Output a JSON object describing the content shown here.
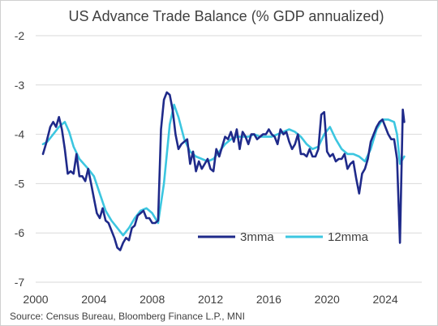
{
  "chart_data": {
    "type": "line",
    "title": "US Advance Trade Balance (% GDP annualized)",
    "xlabel": "",
    "ylabel": "",
    "xlim": [
      2000,
      2026.5
    ],
    "ylim": [
      -7,
      -2
    ],
    "x_ticks": [
      "2000",
      "2004",
      "2008",
      "2012",
      "2016",
      "2020",
      "2024"
    ],
    "y_ticks": [
      "-2",
      "-3",
      "-4",
      "-5",
      "-6",
      "-7"
    ],
    "grid": "horizontal",
    "legend_position": "lower-right",
    "source": "Source: Census Bureau, Bloomberg Finance L.P., MNI",
    "colors": {
      "3mma": "#1f2a8a",
      "12mma": "#3cc6e0"
    },
    "series": [
      {
        "name": "3mma",
        "x": [
          2000.5,
          2000.7,
          2001.0,
          2001.2,
          2001.4,
          2001.6,
          2001.8,
          2002.0,
          2002.2,
          2002.4,
          2002.6,
          2002.8,
          2003.0,
          2003.2,
          2003.4,
          2003.6,
          2003.8,
          2004.0,
          2004.2,
          2004.4,
          2004.6,
          2004.8,
          2005.0,
          2005.2,
          2005.4,
          2005.6,
          2005.8,
          2006.0,
          2006.2,
          2006.4,
          2006.6,
          2006.8,
          2007.0,
          2007.2,
          2007.4,
          2007.6,
          2007.8,
          2008.0,
          2008.2,
          2008.4,
          2008.6,
          2008.8,
          2009.0,
          2009.2,
          2009.4,
          2009.6,
          2009.8,
          2010.0,
          2010.2,
          2010.4,
          2010.6,
          2010.8,
          2011.0,
          2011.2,
          2011.4,
          2011.6,
          2011.8,
          2012.0,
          2012.2,
          2012.4,
          2012.6,
          2012.8,
          2013.0,
          2013.2,
          2013.4,
          2013.6,
          2013.8,
          2014.0,
          2014.2,
          2014.4,
          2014.6,
          2014.8,
          2015.0,
          2015.2,
          2015.4,
          2015.6,
          2015.8,
          2016.0,
          2016.2,
          2016.4,
          2016.6,
          2016.8,
          2017.0,
          2017.2,
          2017.4,
          2017.6,
          2017.8,
          2018.0,
          2018.2,
          2018.4,
          2018.6,
          2018.8,
          2019.0,
          2019.2,
          2019.4,
          2019.6,
          2019.8,
          2020.0,
          2020.2,
          2020.4,
          2020.6,
          2020.8,
          2021.0,
          2021.2,
          2021.4,
          2021.6,
          2021.8,
          2022.0,
          2022.2,
          2022.4,
          2022.6,
          2022.8,
          2023.0,
          2023.2,
          2023.4,
          2023.6,
          2023.8,
          2024.0,
          2024.2,
          2024.4,
          2024.6,
          2024.8,
          2025.0,
          2025.1,
          2025.2,
          2025.3
        ],
        "values": [
          -4.4,
          -4.2,
          -3.85,
          -3.75,
          -3.85,
          -3.65,
          -3.9,
          -4.3,
          -4.8,
          -4.75,
          -4.8,
          -4.4,
          -4.85,
          -4.85,
          -4.95,
          -4.7,
          -5.0,
          -5.3,
          -5.6,
          -5.7,
          -5.5,
          -5.75,
          -5.8,
          -5.95,
          -6.1,
          -6.3,
          -6.35,
          -6.2,
          -6.1,
          -6.15,
          -5.9,
          -5.85,
          -5.65,
          -5.6,
          -5.55,
          -5.7,
          -5.7,
          -5.8,
          -5.8,
          -5.75,
          -3.9,
          -3.3,
          -3.15,
          -3.2,
          -3.5,
          -4.0,
          -4.3,
          -4.2,
          -4.15,
          -4.1,
          -4.6,
          -4.35,
          -4.75,
          -4.55,
          -4.7,
          -4.6,
          -4.5,
          -4.7,
          -4.75,
          -4.3,
          -4.45,
          -4.25,
          -4.05,
          -4.1,
          -3.95,
          -4.15,
          -3.9,
          -4.3,
          -3.95,
          -4.05,
          -4.2,
          -4.0,
          -4.0,
          -4.1,
          -4.05,
          -4.0,
          -4.0,
          -3.9,
          -4.0,
          -4.05,
          -4.2,
          -3.9,
          -4.0,
          -3.95,
          -4.15,
          -4.3,
          -4.2,
          -4.0,
          -4.4,
          -4.4,
          -4.45,
          -4.3,
          -4.45,
          -4.45,
          -4.3,
          -3.6,
          -3.55,
          -4.35,
          -4.45,
          -4.4,
          -4.55,
          -4.5,
          -4.5,
          -4.4,
          -4.7,
          -4.6,
          -4.55,
          -4.9,
          -5.2,
          -4.8,
          -4.7,
          -4.5,
          -4.15,
          -4.0,
          -3.85,
          -3.75,
          -3.7,
          -3.85,
          -4.0,
          -4.1,
          -4.1,
          -4.5,
          -6.2,
          -4.8,
          -3.5,
          -3.75
        ]
      },
      {
        "name": "12mma",
        "x": [
          2000.5,
          2000.8,
          2001.2,
          2001.6,
          2002.0,
          2002.3,
          2002.6,
          2003.0,
          2003.3,
          2003.6,
          2004.0,
          2004.4,
          2004.8,
          2005.2,
          2005.6,
          2006.0,
          2006.4,
          2006.8,
          2007.2,
          2007.6,
          2008.0,
          2008.4,
          2008.8,
          2009.2,
          2009.5,
          2009.8,
          2010.2,
          2010.6,
          2011.0,
          2011.4,
          2011.8,
          2012.2,
          2012.6,
          2013.0,
          2013.4,
          2013.8,
          2014.2,
          2014.6,
          2015.0,
          2015.4,
          2015.8,
          2016.2,
          2016.6,
          2017.0,
          2017.4,
          2017.8,
          2018.2,
          2018.6,
          2019.0,
          2019.4,
          2019.8,
          2020.2,
          2020.6,
          2021.0,
          2021.4,
          2021.8,
          2022.2,
          2022.6,
          2023.0,
          2023.4,
          2023.8,
          2024.2,
          2024.6,
          2024.8,
          2025.0,
          2025.2,
          2025.3
        ],
        "values": [
          -4.2,
          -4.15,
          -4.0,
          -3.85,
          -3.75,
          -3.95,
          -4.25,
          -4.5,
          -4.6,
          -4.7,
          -4.85,
          -5.2,
          -5.55,
          -5.75,
          -5.9,
          -6.05,
          -5.9,
          -5.7,
          -5.55,
          -5.5,
          -5.6,
          -5.8,
          -5.0,
          -3.8,
          -3.4,
          -3.65,
          -4.1,
          -4.35,
          -4.45,
          -4.5,
          -4.55,
          -4.5,
          -4.35,
          -4.2,
          -4.1,
          -4.05,
          -4.05,
          -4.05,
          -4.0,
          -4.05,
          -4.05,
          -4.05,
          -4.0,
          -3.95,
          -3.9,
          -3.95,
          -4.05,
          -4.2,
          -4.3,
          -4.25,
          -4.0,
          -3.85,
          -4.1,
          -4.3,
          -4.4,
          -4.4,
          -4.45,
          -4.55,
          -4.3,
          -3.9,
          -3.7,
          -3.7,
          -3.75,
          -4.0,
          -4.6,
          -4.5,
          -4.45
        ]
      }
    ]
  }
}
